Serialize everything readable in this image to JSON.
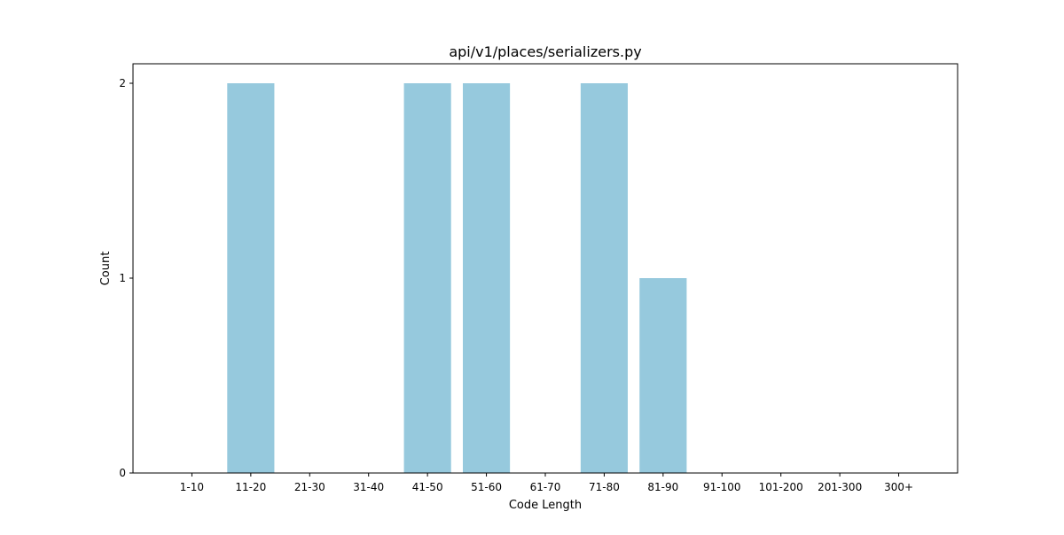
{
  "chart_data": {
    "type": "bar",
    "title": "api/v1/places/serializers.py",
    "xlabel": "Code Length",
    "ylabel": "Count",
    "categories": [
      "1-10",
      "11-20",
      "21-30",
      "31-40",
      "41-50",
      "51-60",
      "61-70",
      "71-80",
      "81-90",
      "91-100",
      "101-200",
      "201-300",
      "300+"
    ],
    "values": [
      0,
      2,
      0,
      0,
      2,
      2,
      0,
      2,
      1,
      0,
      0,
      0,
      0
    ],
    "ylim": [
      0,
      2.1
    ],
    "yticks": [
      0,
      1,
      2
    ],
    "bar_color": "#96c9dd",
    "grid": false,
    "legend": "none"
  }
}
